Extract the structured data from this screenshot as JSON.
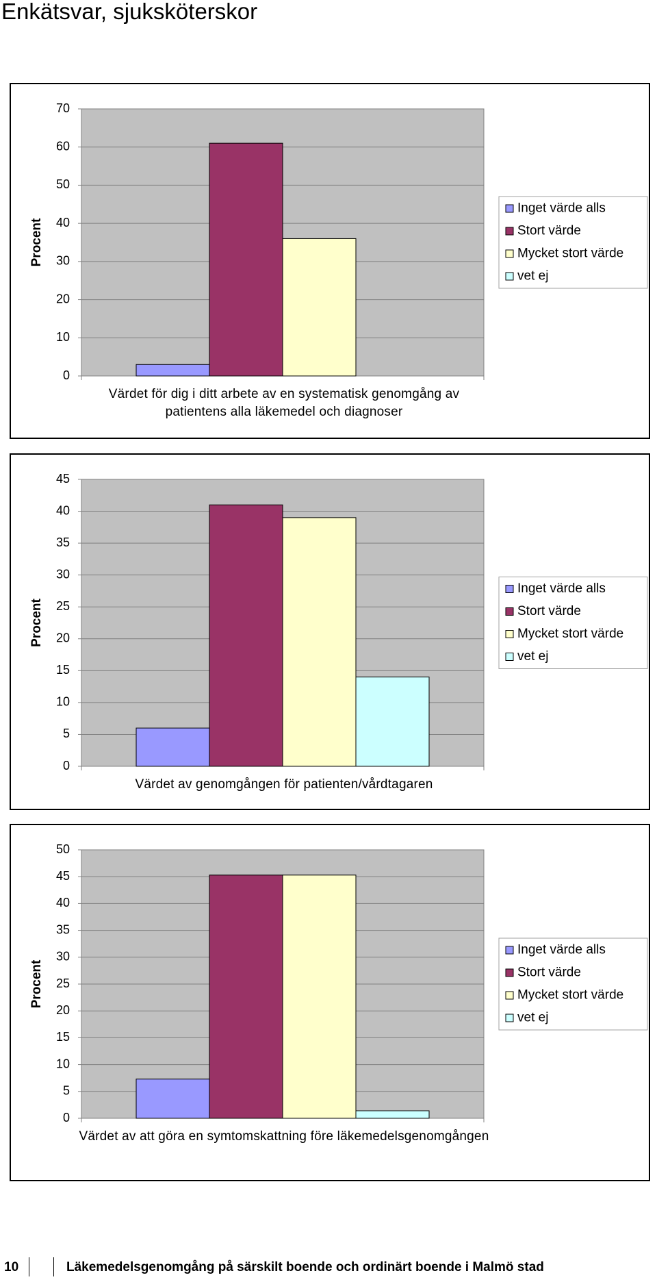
{
  "header": {
    "title": "Enkätsvar, sjuksköterskor"
  },
  "chart_data": [
    {
      "type": "bar",
      "ylabel": "Procent",
      "categories": [
        "Värdet för dig i ditt arbete av en systematisk genomgång av patientens alla läkemedel och diagnoser"
      ],
      "series": [
        {
          "name": "Inget värde alls",
          "color": "#9999ff",
          "values": [
            3
          ]
        },
        {
          "name": "Stort värde",
          "color": "#993366",
          "values": [
            61
          ]
        },
        {
          "name": "Mycket stort värde",
          "color": "#ffffcc",
          "values": [
            36
          ]
        },
        {
          "name": "vet ej",
          "color": "#ccffff",
          "values": [
            0
          ]
        }
      ],
      "ylim": [
        0,
        70
      ],
      "yticks": [
        0,
        10,
        20,
        30,
        40,
        50,
        60,
        70
      ],
      "grid": true,
      "legend": "right"
    },
    {
      "type": "bar",
      "ylabel": "Procent",
      "categories": [
        "Värdet av genomgången för patienten/vårdtagaren"
      ],
      "series": [
        {
          "name": "Inget värde alls",
          "color": "#9999ff",
          "values": [
            6
          ]
        },
        {
          "name": "Stort värde",
          "color": "#993366",
          "values": [
            41
          ]
        },
        {
          "name": "Mycket stort värde",
          "color": "#ffffcc",
          "values": [
            39
          ]
        },
        {
          "name": "vet ej",
          "color": "#ccffff",
          "values": [
            14
          ]
        }
      ],
      "ylim": [
        0,
        45
      ],
      "yticks": [
        0,
        5,
        10,
        15,
        20,
        25,
        30,
        35,
        40,
        45
      ],
      "grid": true,
      "legend": "right"
    },
    {
      "type": "bar",
      "ylabel": "Procent",
      "categories": [
        "Värdet av att göra en symtomskattning före läkemedelsgenomgången"
      ],
      "series": [
        {
          "name": "Inget värde alls",
          "color": "#9999ff",
          "values": [
            7.3
          ]
        },
        {
          "name": "Stort värde",
          "color": "#993366",
          "values": [
            45.3
          ]
        },
        {
          "name": "Mycket stort värde",
          "color": "#ffffcc",
          "values": [
            45.3
          ]
        },
        {
          "name": "vet ej",
          "color": "#ccffff",
          "values": [
            1.4
          ]
        }
      ],
      "ylim": [
        0,
        50
      ],
      "yticks": [
        0,
        5,
        10,
        15,
        20,
        25,
        30,
        35,
        40,
        45,
        50
      ],
      "grid": true,
      "legend": "right"
    }
  ],
  "footer": {
    "page_number": "10",
    "text": "Läkemedelsgenomgång på särskilt boende och ordinärt boende i Malmö stad"
  }
}
